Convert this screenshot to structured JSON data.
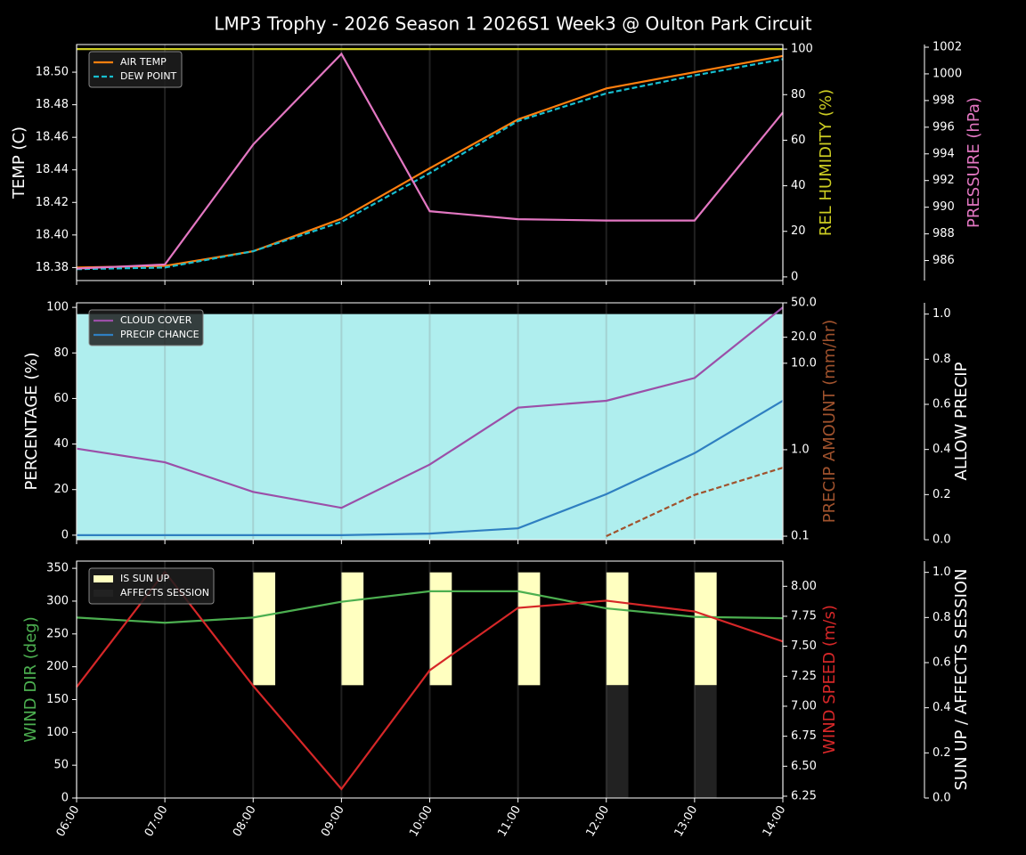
{
  "title": "LMP3 Trophy - 2026 Season 1 2026S1 Week3 @ Oulton Park Circuit",
  "chart_data": [
    {
      "type": "line",
      "legend": "upper left",
      "grid": true,
      "ylabel": "TEMP (C)",
      "ylim": [
        18.372,
        18.517
      ],
      "yticks": [
        18.38,
        {
          "value": 18.4,
          "label": "18.40"
        },
        18.42,
        18.44,
        18.46,
        18.48,
        {
          "value": 18.5,
          "label": "18.50"
        }
      ],
      "y2label": "REL HUMIDITY (%)",
      "y2color": "#cdcd22",
      "y2lim": [
        -1.6,
        102
      ],
      "y2ticks": [
        0,
        20,
        40,
        60,
        80,
        100
      ],
      "y3label": "PRESSURE (hPa)",
      "y3color": "#e377c2",
      "y3lim": [
        984.5,
        1002.2
      ],
      "y3ticks": [
        986,
        988,
        990,
        992,
        994,
        996,
        998,
        1000,
        1002
      ],
      "series": [
        {
          "name": "AIR TEMP",
          "color": "#ff7f0e",
          "values": [
            18.38,
            18.381,
            18.39,
            18.41,
            18.441,
            18.471,
            18.49,
            18.5,
            18.51
          ]
        },
        {
          "name": "DEW POINT",
          "color": "#17becf",
          "dash": true,
          "values": [
            18.379,
            18.38,
            18.39,
            18.408,
            18.438,
            18.47,
            18.487,
            18.498,
            18.508
          ]
        },
        {
          "color": "#cdcd22",
          "axis": "y2",
          "values": [
            100,
            100,
            100,
            100,
            100,
            100,
            100,
            100,
            100
          ]
        },
        {
          "color": "#e377c2",
          "axis": "y3",
          "values": [
            985.4,
            985.7,
            994.7,
            1001.5,
            989.7,
            989.1,
            989.0,
            989.0,
            997.1
          ]
        }
      ]
    },
    {
      "type": "line",
      "legend": "upper left",
      "grid": true,
      "ylabel": "PERCENTAGE (%)",
      "ylim": [
        -2,
        102
      ],
      "yticks": [
        0,
        20,
        40,
        60,
        80,
        100
      ],
      "y2label": "PRECIP AMOUNT (mm/hr)",
      "y2color": "#a0522d",
      "y2log": true,
      "y2lim": [
        0.091,
        50
      ],
      "y2ticks": [
        0.1,
        {
          "value": 1,
          "label": "1.0"
        },
        {
          "value": 10,
          "label": "10.0"
        },
        {
          "value": 20,
          "label": "20.0"
        },
        {
          "value": 50,
          "label": "50.0"
        }
      ],
      "y3label": "ALLOW PRECIP",
      "y3lim": [
        0,
        1.05
      ],
      "y3ticks": [
        {
          "value": 0,
          "label": "0.0"
        },
        0.2,
        0.4,
        0.6,
        0.8,
        {
          "value": 1,
          "label": "1.0"
        }
      ],
      "series": [
        {
          "color": "#afeeee",
          "axis": "y3",
          "mark": "area",
          "values": [
            1,
            1,
            1,
            1,
            1,
            1,
            1,
            1,
            1
          ]
        },
        {
          "name": "CLOUD COVER",
          "color": "#9b4fa8",
          "values": [
            38,
            32,
            19,
            12,
            31,
            56,
            59,
            69,
            100
          ]
        },
        {
          "name": "PRECIP CHANCE",
          "color": "#2f7fc1",
          "values": [
            0,
            0,
            0,
            0,
            0.7,
            3,
            18,
            36,
            59
          ]
        },
        {
          "color": "#a0522d",
          "axis": "y2",
          "dash": true,
          "values": [
            null,
            null,
            null,
            null,
            null,
            null,
            0.1,
            0.3,
            0.62
          ]
        }
      ]
    },
    {
      "type": "line",
      "legend": "upper left",
      "grid": true,
      "categories": [
        "06:00",
        "07:00",
        "08:00",
        "09:00",
        "10:00",
        "11:00",
        "12:00",
        "13:00",
        "14:00"
      ],
      "ylabel": "WIND DIR (deg)",
      "ycolor": "#4caf50",
      "ylim": [
        0,
        361
      ],
      "yticks": [
        0,
        50,
        100,
        150,
        200,
        250,
        300,
        350
      ],
      "y2label": "WIND SPEED (m/s)",
      "y2color": "#d62728",
      "y2lim": [
        6.235,
        8.21
      ],
      "y2ticks": [
        6.25,
        {
          "value": 6.5,
          "label": "6.50"
        },
        6.75,
        {
          "value": 7,
          "label": "7.00"
        },
        7.25,
        {
          "value": 7.5,
          "label": "7.50"
        },
        7.75,
        {
          "value": 8,
          "label": "8.00"
        }
      ],
      "y3label": "SUN UP / AFFECTS SESSION",
      "y3lim": [
        0,
        1.05
      ],
      "y3ticks": [
        {
          "value": 0,
          "label": "0.0"
        },
        0.2,
        0.4,
        0.6,
        0.8,
        {
          "value": 1,
          "label": "1.0"
        }
      ],
      "series": [
        {
          "name": "IS SUN UP",
          "color": "#ffffc0",
          "axis": "y3",
          "mark": "bar",
          "bottom": 0.5,
          "values": [
            0,
            0,
            1,
            1,
            1,
            1,
            1,
            1,
            0
          ]
        },
        {
          "name": "AFFECTS SESSION",
          "color": "#222222",
          "axis": "y3",
          "mark": "bar",
          "values": [
            0,
            0,
            0,
            0,
            0,
            0,
            0.5,
            0.5,
            0
          ]
        },
        {
          "color": "#4caf50",
          "values": [
            275,
            267,
            275,
            299,
            315,
            315,
            289,
            276,
            274
          ]
        },
        {
          "color": "#d62728",
          "axis": "y2",
          "values": [
            7.16,
            8.12,
            7.17,
            6.31,
            7.3,
            7.82,
            7.88,
            7.79,
            7.54
          ]
        }
      ]
    }
  ]
}
